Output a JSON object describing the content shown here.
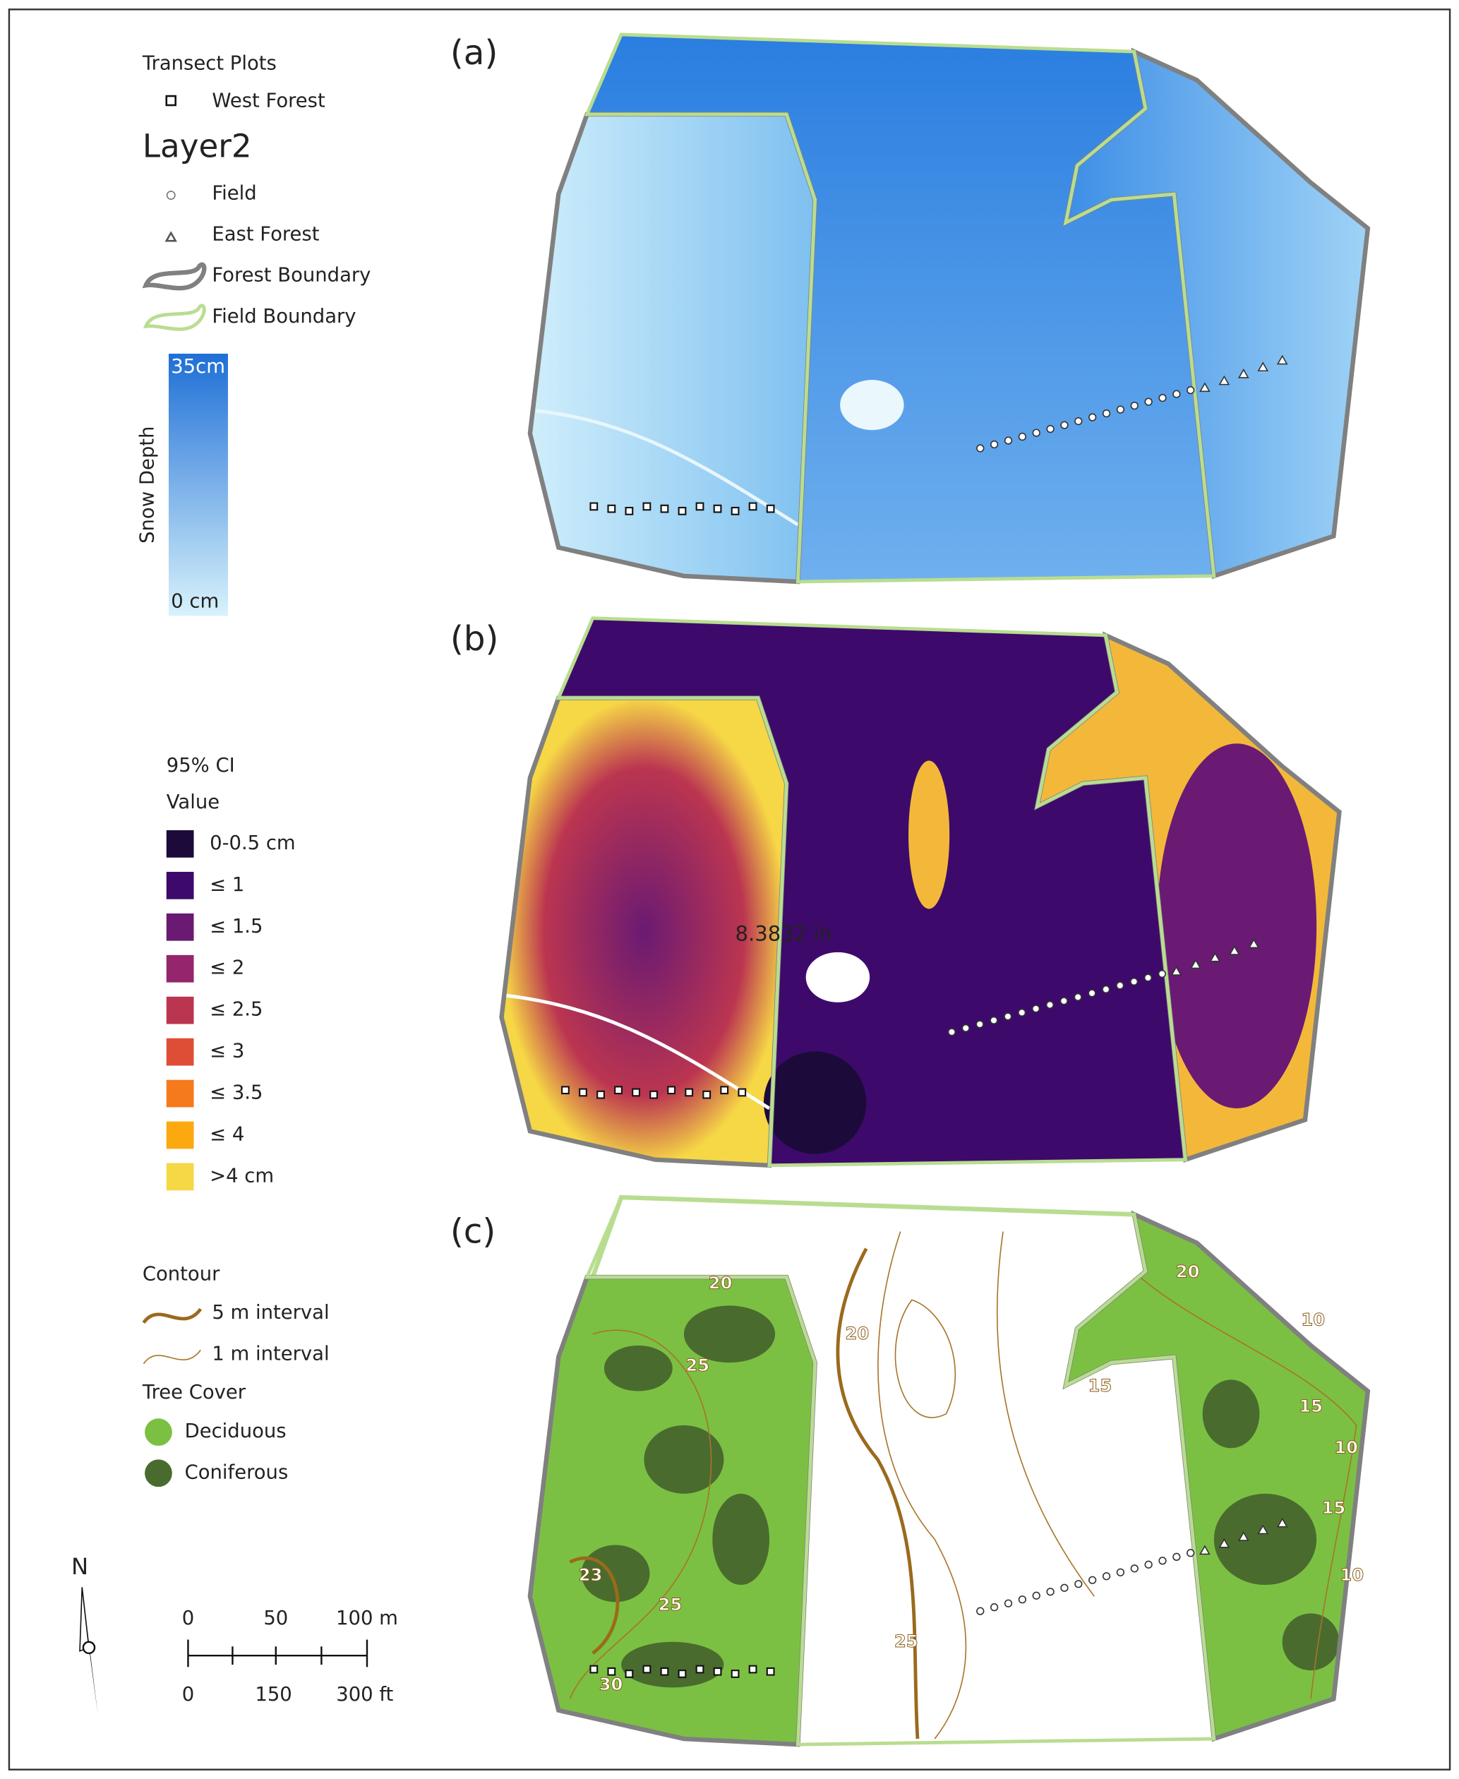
{
  "legend": {
    "transect_title": "Transect Plots",
    "west_forest": "West Forest",
    "layer_title": "Layer2",
    "field": "Field",
    "east_forest": "East Forest",
    "forest_boundary": "Forest Boundary",
    "field_boundary": "Field Boundary",
    "snow_depth_title": "Snow Depth",
    "snow_max": "35cm",
    "snow_min": "0 cm"
  },
  "ci_legend": {
    "title": "95% CI",
    "subtitle": "Value",
    "classes": [
      {
        "label": "0-0.5 cm",
        "color": "#1c0b3a"
      },
      {
        "label": "≤ 1",
        "color": "#3d0a6b"
      },
      {
        "label": "≤ 1.5",
        "color": "#6a1a73"
      },
      {
        "label": "≤ 2",
        "color": "#93266c"
      },
      {
        "label": "≤ 2.5",
        "color": "#bb3550"
      },
      {
        "label": "≤ 3",
        "color": "#de4e36"
      },
      {
        "label": "≤ 3.5",
        "color": "#f57a1c"
      },
      {
        "label": "≤ 4",
        "color": "#fba90f"
      },
      {
        "label": ">4 cm",
        "color": "#f6d746"
      }
    ]
  },
  "contour_legend": {
    "title": "Contour",
    "items": [
      "5 m interval",
      "1 m interval"
    ]
  },
  "tree_legend": {
    "title": "Tree Cover",
    "items": [
      "Deciduous",
      "Coniferous"
    ]
  },
  "panels": [
    "(a)",
    "(b)",
    "(c)"
  ],
  "annotation": "8.3832 in",
  "contour_labels": [
    "20",
    "25",
    "23",
    "25",
    "30",
    "20",
    "20",
    "15",
    "10",
    "15",
    "10",
    "15",
    "10",
    "25"
  ],
  "north": "N",
  "scale_bar": {
    "metric": [
      "0",
      "50",
      "100 m"
    ],
    "imperial": [
      "0",
      "150",
      "300 ft"
    ]
  }
}
